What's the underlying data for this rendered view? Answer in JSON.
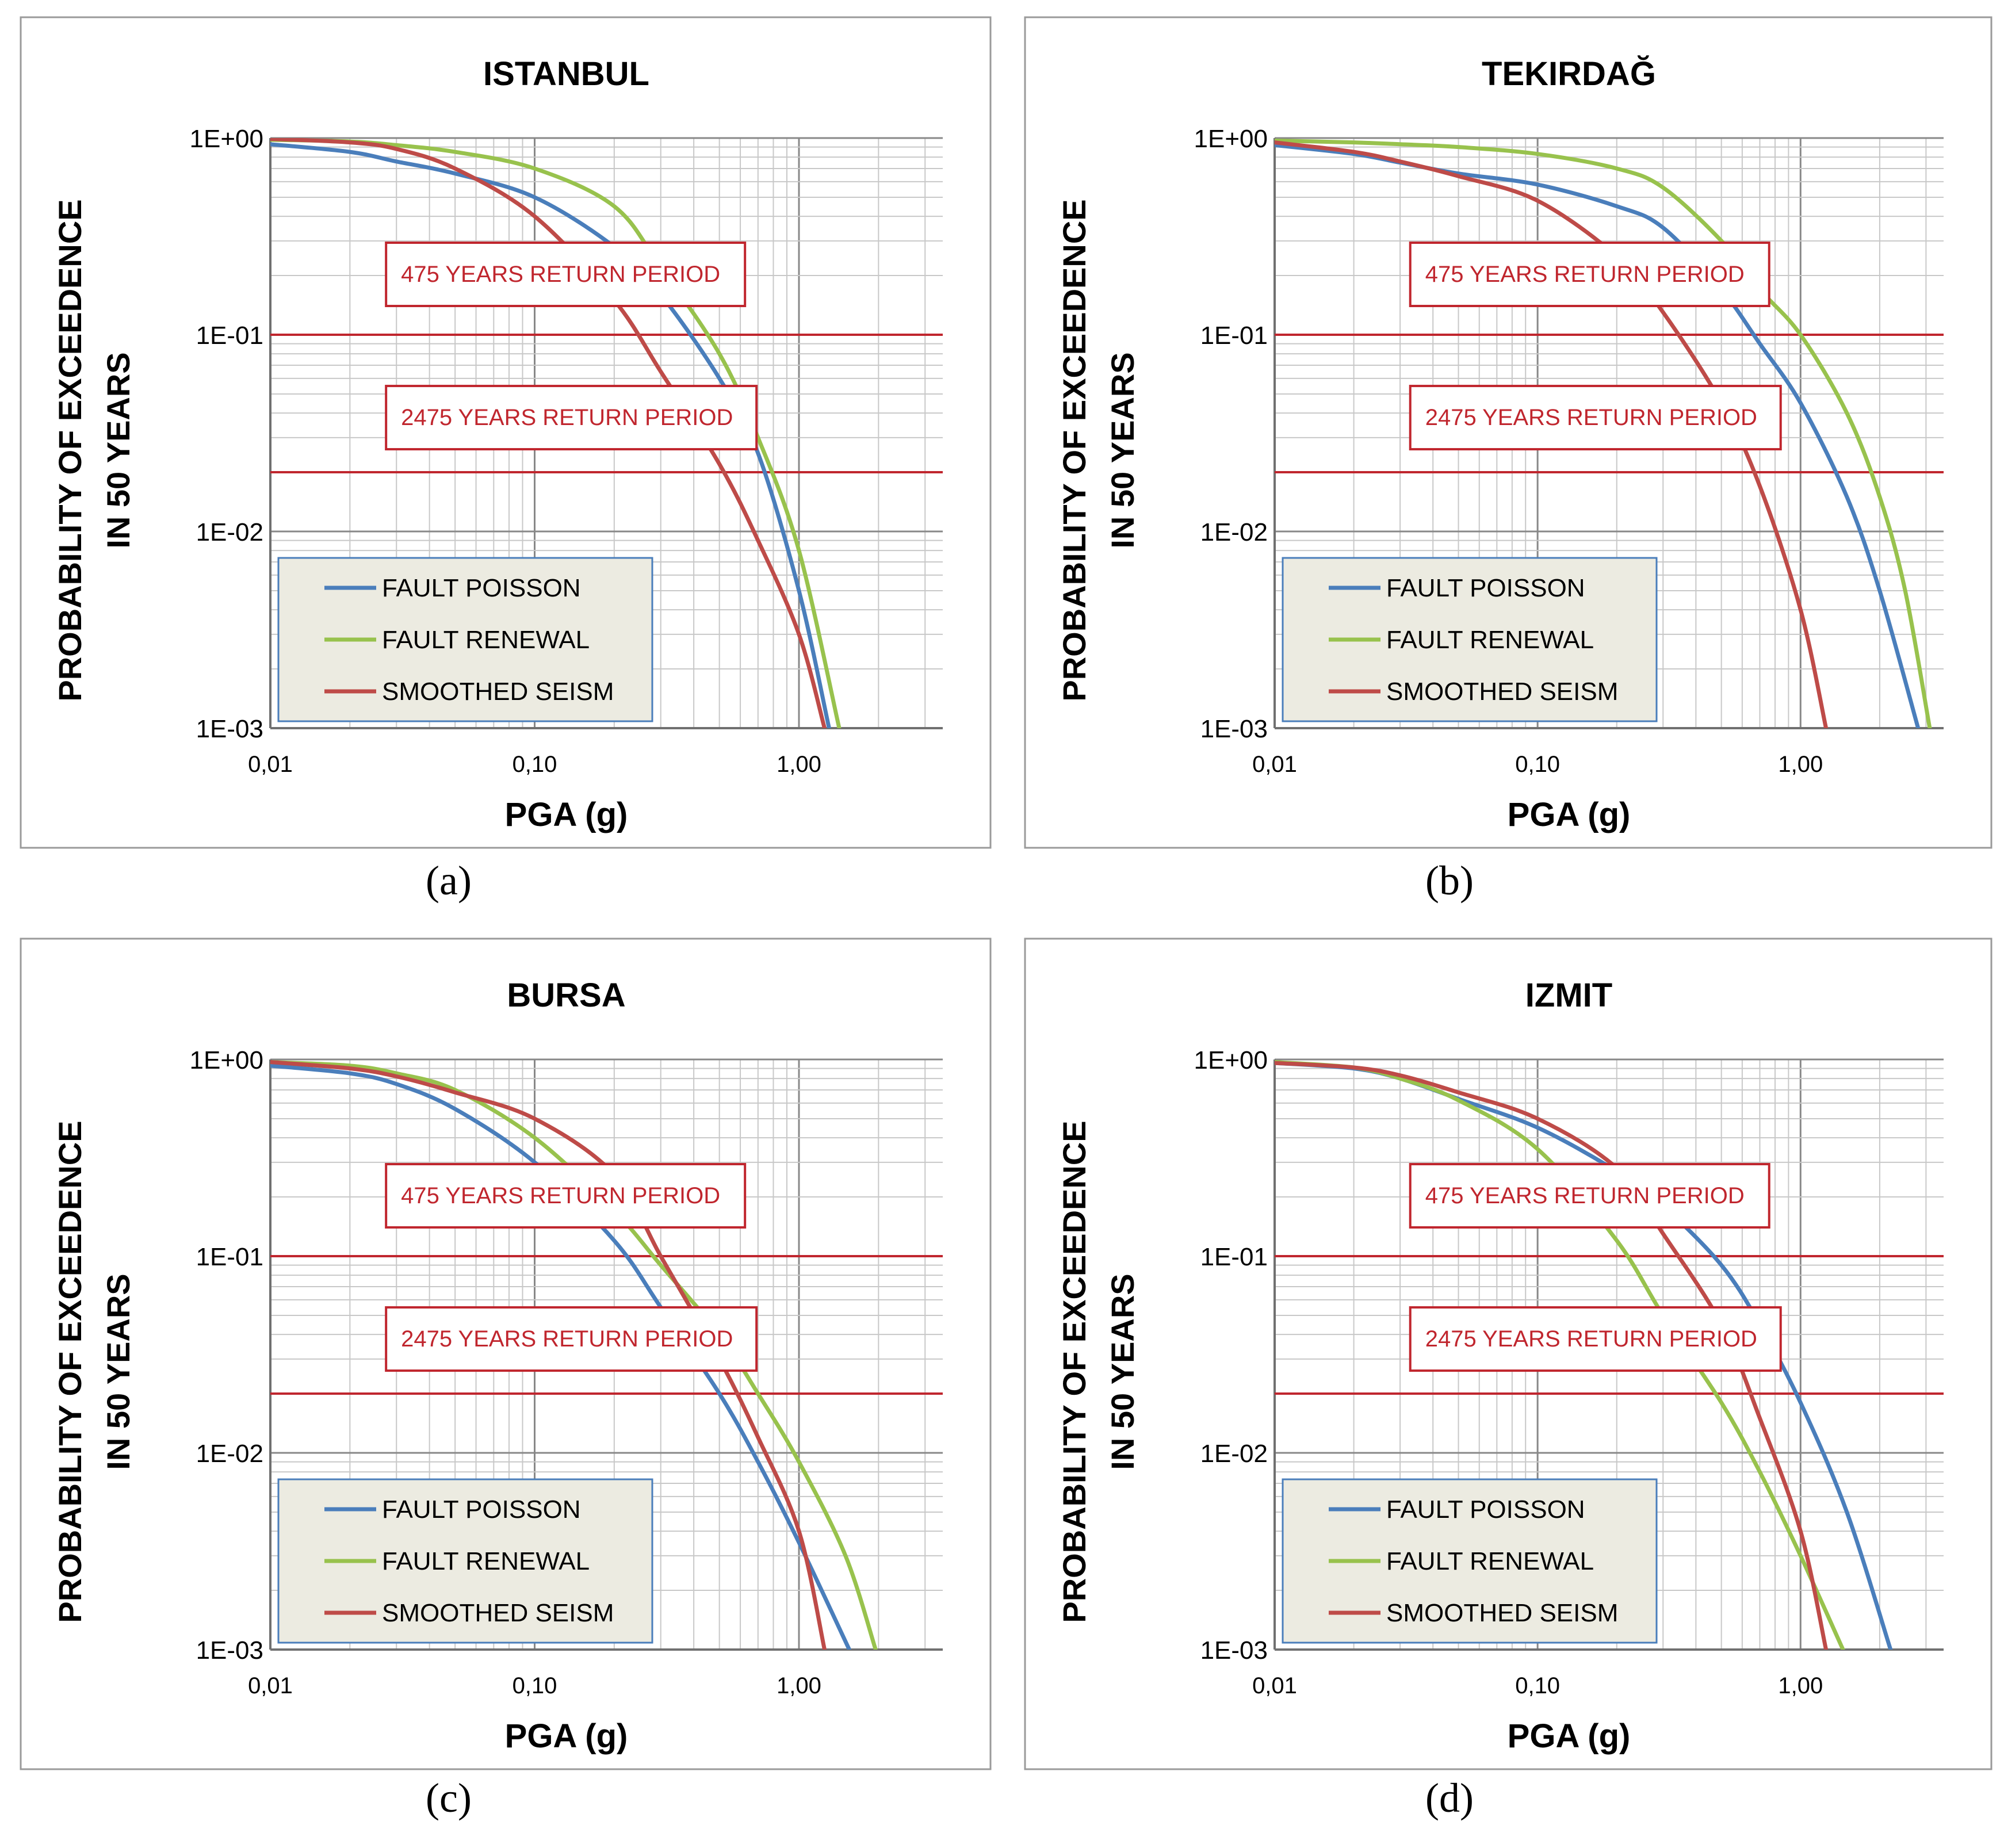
{
  "figure": {
    "captions": [
      "(a)",
      "(b)",
      "(c)",
      "(d)"
    ]
  },
  "colors": {
    "poisson": "#4a7ebb",
    "renewal": "#98c24d",
    "smoothed": "#be4b48",
    "reference_line": "#c0262e",
    "legend_bg": "#ecebe1",
    "legend_border": "#4a7ebb",
    "grid": "#c8c8c8",
    "grid_major": "#888888"
  },
  "chart_data": [
    {
      "type": "line",
      "title": "ISTANBUL",
      "xlabel": "PGA (g)",
      "ylabel": [
        "PROBABILITY OF EXCEEDENCE",
        "IN 50 YEARS"
      ],
      "xscale": "log",
      "yscale": "log",
      "xlim": [
        0.01,
        3.5
      ],
      "ylim": [
        0.001,
        1
      ],
      "xticks": [
        0.01,
        0.1,
        1
      ],
      "xtick_labels": [
        "0,01",
        "0,10",
        "1,00"
      ],
      "yticks": [
        1,
        0.1,
        0.01,
        0.001
      ],
      "ytick_labels": [
        "1E+00",
        "1E-01",
        "1E-02",
        "1E-03"
      ],
      "reference_lines": [
        {
          "label": "475 YEARS RETURN PERIOD",
          "y": 0.1,
          "label_pga": 0.05
        },
        {
          "label": "2475 YEARS RETURN PERIOD",
          "y": 0.02,
          "label_pga": 0.05
        }
      ],
      "legend_position": "lower-left",
      "series": [
        {
          "name": "FAULT POISSON",
          "color_key": "poisson",
          "points": [
            [
              0.01,
              0.93
            ],
            [
              0.02,
              0.85
            ],
            [
              0.03,
              0.76
            ],
            [
              0.05,
              0.66
            ],
            [
              0.1,
              0.5
            ],
            [
              0.2,
              0.28
            ],
            [
              0.3,
              0.16
            ],
            [
              0.5,
              0.06
            ],
            [
              0.7,
              0.025
            ],
            [
              1.0,
              0.005
            ],
            [
              1.3,
              0.001
            ]
          ]
        },
        {
          "name": "FAULT RENEWAL",
          "color_key": "renewal",
          "points": [
            [
              0.01,
              0.98
            ],
            [
              0.02,
              0.96
            ],
            [
              0.03,
              0.92
            ],
            [
              0.05,
              0.85
            ],
            [
              0.1,
              0.7
            ],
            [
              0.2,
              0.45
            ],
            [
              0.3,
              0.22
            ],
            [
              0.5,
              0.08
            ],
            [
              0.7,
              0.03
            ],
            [
              1.0,
              0.008
            ],
            [
              1.42,
              0.001
            ]
          ]
        },
        {
          "name": "SMOOTHED SEISM",
          "color_key": "smoothed",
          "points": [
            [
              0.01,
              0.99
            ],
            [
              0.02,
              0.95
            ],
            [
              0.03,
              0.88
            ],
            [
              0.05,
              0.7
            ],
            [
              0.1,
              0.4
            ],
            [
              0.2,
              0.15
            ],
            [
              0.3,
              0.065
            ],
            [
              0.5,
              0.022
            ],
            [
              0.7,
              0.009
            ],
            [
              1.0,
              0.003
            ],
            [
              1.25,
              0.001
            ]
          ]
        }
      ]
    },
    {
      "type": "line",
      "title": "TEKIRDAĞ",
      "xlabel": "PGA (g)",
      "ylabel": [
        "PROBABILITY OF EXCEEDENCE",
        "IN 50 YEARS"
      ],
      "xscale": "log",
      "yscale": "log",
      "xlim": [
        0.01,
        3.5
      ],
      "ylim": [
        0.001,
        1
      ],
      "xticks": [
        0.01,
        0.1,
        1
      ],
      "xtick_labels": [
        "0,01",
        "0,10",
        "1,00"
      ],
      "yticks": [
        1,
        0.1,
        0.01,
        0.001
      ],
      "ytick_labels": [
        "1E+00",
        "1E-01",
        "1E-02",
        "1E-03"
      ],
      "reference_lines": [
        {
          "label": "475 YEARS RETURN PERIOD",
          "y": 0.1,
          "label_pga": 0.06
        },
        {
          "label": "2475 YEARS RETURN PERIOD",
          "y": 0.02,
          "label_pga": 0.06
        }
      ],
      "legend_position": "lower-left",
      "series": [
        {
          "name": "FAULT POISSON",
          "color_key": "poisson",
          "points": [
            [
              0.01,
              0.92
            ],
            [
              0.02,
              0.83
            ],
            [
              0.03,
              0.75
            ],
            [
              0.05,
              0.66
            ],
            [
              0.1,
              0.58
            ],
            [
              0.2,
              0.45
            ],
            [
              0.3,
              0.35
            ],
            [
              0.5,
              0.17
            ],
            [
              0.7,
              0.09
            ],
            [
              1.0,
              0.045
            ],
            [
              1.5,
              0.015
            ],
            [
              2.0,
              0.005
            ],
            [
              2.8,
              0.001
            ]
          ]
        },
        {
          "name": "FAULT RENEWAL",
          "color_key": "renewal",
          "points": [
            [
              0.01,
              0.97
            ],
            [
              0.02,
              0.95
            ],
            [
              0.03,
              0.93
            ],
            [
              0.05,
              0.9
            ],
            [
              0.1,
              0.83
            ],
            [
              0.2,
              0.7
            ],
            [
              0.3,
              0.56
            ],
            [
              0.5,
              0.3
            ],
            [
              0.7,
              0.17
            ],
            [
              1.0,
              0.1
            ],
            [
              1.5,
              0.04
            ],
            [
              2.0,
              0.015
            ],
            [
              2.5,
              0.005
            ],
            [
              3.1,
              0.001
            ]
          ]
        },
        {
          "name": "SMOOTHED SEISM",
          "color_key": "smoothed",
          "points": [
            [
              0.01,
              0.95
            ],
            [
              0.02,
              0.85
            ],
            [
              0.03,
              0.76
            ],
            [
              0.05,
              0.64
            ],
            [
              0.1,
              0.48
            ],
            [
              0.2,
              0.25
            ],
            [
              0.3,
              0.13
            ],
            [
              0.5,
              0.045
            ],
            [
              0.7,
              0.017
            ],
            [
              1.0,
              0.004
            ],
            [
              1.25,
              0.001
            ]
          ]
        }
      ]
    },
    {
      "type": "line",
      "title": "BURSA",
      "xlabel": "PGA (g)",
      "ylabel": [
        "PROBABILITY OF EXCEEDENCE",
        "IN 50 YEARS"
      ],
      "xscale": "log",
      "yscale": "log",
      "xlim": [
        0.01,
        3.5
      ],
      "ylim": [
        0.001,
        1
      ],
      "xticks": [
        0.01,
        0.1,
        1
      ],
      "xtick_labels": [
        "0,01",
        "0,10",
        "1,00"
      ],
      "yticks": [
        1,
        0.1,
        0.01,
        0.001
      ],
      "ytick_labels": [
        "1E+00",
        "1E-01",
        "1E-02",
        "1E-03"
      ],
      "reference_lines": [
        {
          "label": "475 YEARS RETURN PERIOD",
          "y": 0.1,
          "label_pga": 0.05
        },
        {
          "label": "2475 YEARS RETURN PERIOD",
          "y": 0.02,
          "label_pga": 0.05
        }
      ],
      "legend_position": "lower-left",
      "series": [
        {
          "name": "FAULT POISSON",
          "color_key": "poisson",
          "points": [
            [
              0.01,
              0.93
            ],
            [
              0.02,
              0.85
            ],
            [
              0.03,
              0.75
            ],
            [
              0.05,
              0.56
            ],
            [
              0.1,
              0.3
            ],
            [
              0.2,
              0.12
            ],
            [
              0.3,
              0.055
            ],
            [
              0.5,
              0.02
            ],
            [
              0.7,
              0.009
            ],
            [
              1.0,
              0.0035
            ],
            [
              1.55,
              0.001
            ]
          ]
        },
        {
          "name": "FAULT RENEWAL",
          "color_key": "renewal",
          "points": [
            [
              0.01,
              0.97
            ],
            [
              0.02,
              0.93
            ],
            [
              0.03,
              0.85
            ],
            [
              0.05,
              0.7
            ],
            [
              0.1,
              0.4
            ],
            [
              0.2,
              0.17
            ],
            [
              0.3,
              0.09
            ],
            [
              0.5,
              0.04
            ],
            [
              0.7,
              0.02
            ],
            [
              1.0,
              0.009
            ],
            [
              1.5,
              0.003
            ],
            [
              1.95,
              0.001
            ]
          ]
        },
        {
          "name": "SMOOTHED SEISM",
          "color_key": "smoothed",
          "points": [
            [
              0.01,
              0.97
            ],
            [
              0.02,
              0.9
            ],
            [
              0.03,
              0.82
            ],
            [
              0.05,
              0.68
            ],
            [
              0.1,
              0.5
            ],
            [
              0.2,
              0.26
            ],
            [
              0.3,
              0.1
            ],
            [
              0.5,
              0.03
            ],
            [
              0.7,
              0.012
            ],
            [
              1.0,
              0.004
            ],
            [
              1.25,
              0.001
            ]
          ]
        }
      ]
    },
    {
      "type": "line",
      "title": "IZMIT",
      "xlabel": "PGA (g)",
      "ylabel": [
        "PROBABILITY OF EXCEEDENCE",
        "IN 50 YEARS"
      ],
      "xscale": "log",
      "yscale": "log",
      "xlim": [
        0.01,
        3.5
      ],
      "ylim": [
        0.001,
        1
      ],
      "xticks": [
        0.01,
        0.1,
        1
      ],
      "xtick_labels": [
        "0,01",
        "0,10",
        "1,00"
      ],
      "yticks": [
        1,
        0.1,
        0.01,
        0.001
      ],
      "ytick_labels": [
        "1E+00",
        "1E-01",
        "1E-02",
        "1E-03"
      ],
      "reference_lines": [
        {
          "label": "475 YEARS RETURN PERIOD",
          "y": 0.1,
          "label_pga": 0.06
        },
        {
          "label": "2475 YEARS RETURN PERIOD",
          "y": 0.02,
          "label_pga": 0.06
        }
      ],
      "legend_position": "lower-left",
      "series": [
        {
          "name": "FAULT POISSON",
          "color_key": "poisson",
          "points": [
            [
              0.01,
              0.96
            ],
            [
              0.02,
              0.9
            ],
            [
              0.03,
              0.8
            ],
            [
              0.05,
              0.63
            ],
            [
              0.1,
              0.45
            ],
            [
              0.2,
              0.27
            ],
            [
              0.3,
              0.18
            ],
            [
              0.5,
              0.09
            ],
            [
              0.7,
              0.045
            ],
            [
              1.0,
              0.018
            ],
            [
              1.5,
              0.005
            ],
            [
              2.2,
              0.001
            ]
          ]
        },
        {
          "name": "FAULT RENEWAL",
          "color_key": "renewal",
          "points": [
            [
              0.01,
              0.97
            ],
            [
              0.02,
              0.91
            ],
            [
              0.03,
              0.8
            ],
            [
              0.05,
              0.62
            ],
            [
              0.1,
              0.35
            ],
            [
              0.2,
              0.12
            ],
            [
              0.3,
              0.05
            ],
            [
              0.5,
              0.018
            ],
            [
              0.7,
              0.008
            ],
            [
              1.0,
              0.003
            ],
            [
              1.45,
              0.001
            ]
          ]
        },
        {
          "name": "SMOOTHED SEISM",
          "color_key": "smoothed",
          "points": [
            [
              0.01,
              0.96
            ],
            [
              0.02,
              0.91
            ],
            [
              0.03,
              0.83
            ],
            [
              0.05,
              0.68
            ],
            [
              0.1,
              0.5
            ],
            [
              0.2,
              0.28
            ],
            [
              0.3,
              0.13
            ],
            [
              0.5,
              0.045
            ],
            [
              0.7,
              0.015
            ],
            [
              1.0,
              0.004
            ],
            [
              1.25,
              0.001
            ]
          ]
        }
      ]
    }
  ]
}
